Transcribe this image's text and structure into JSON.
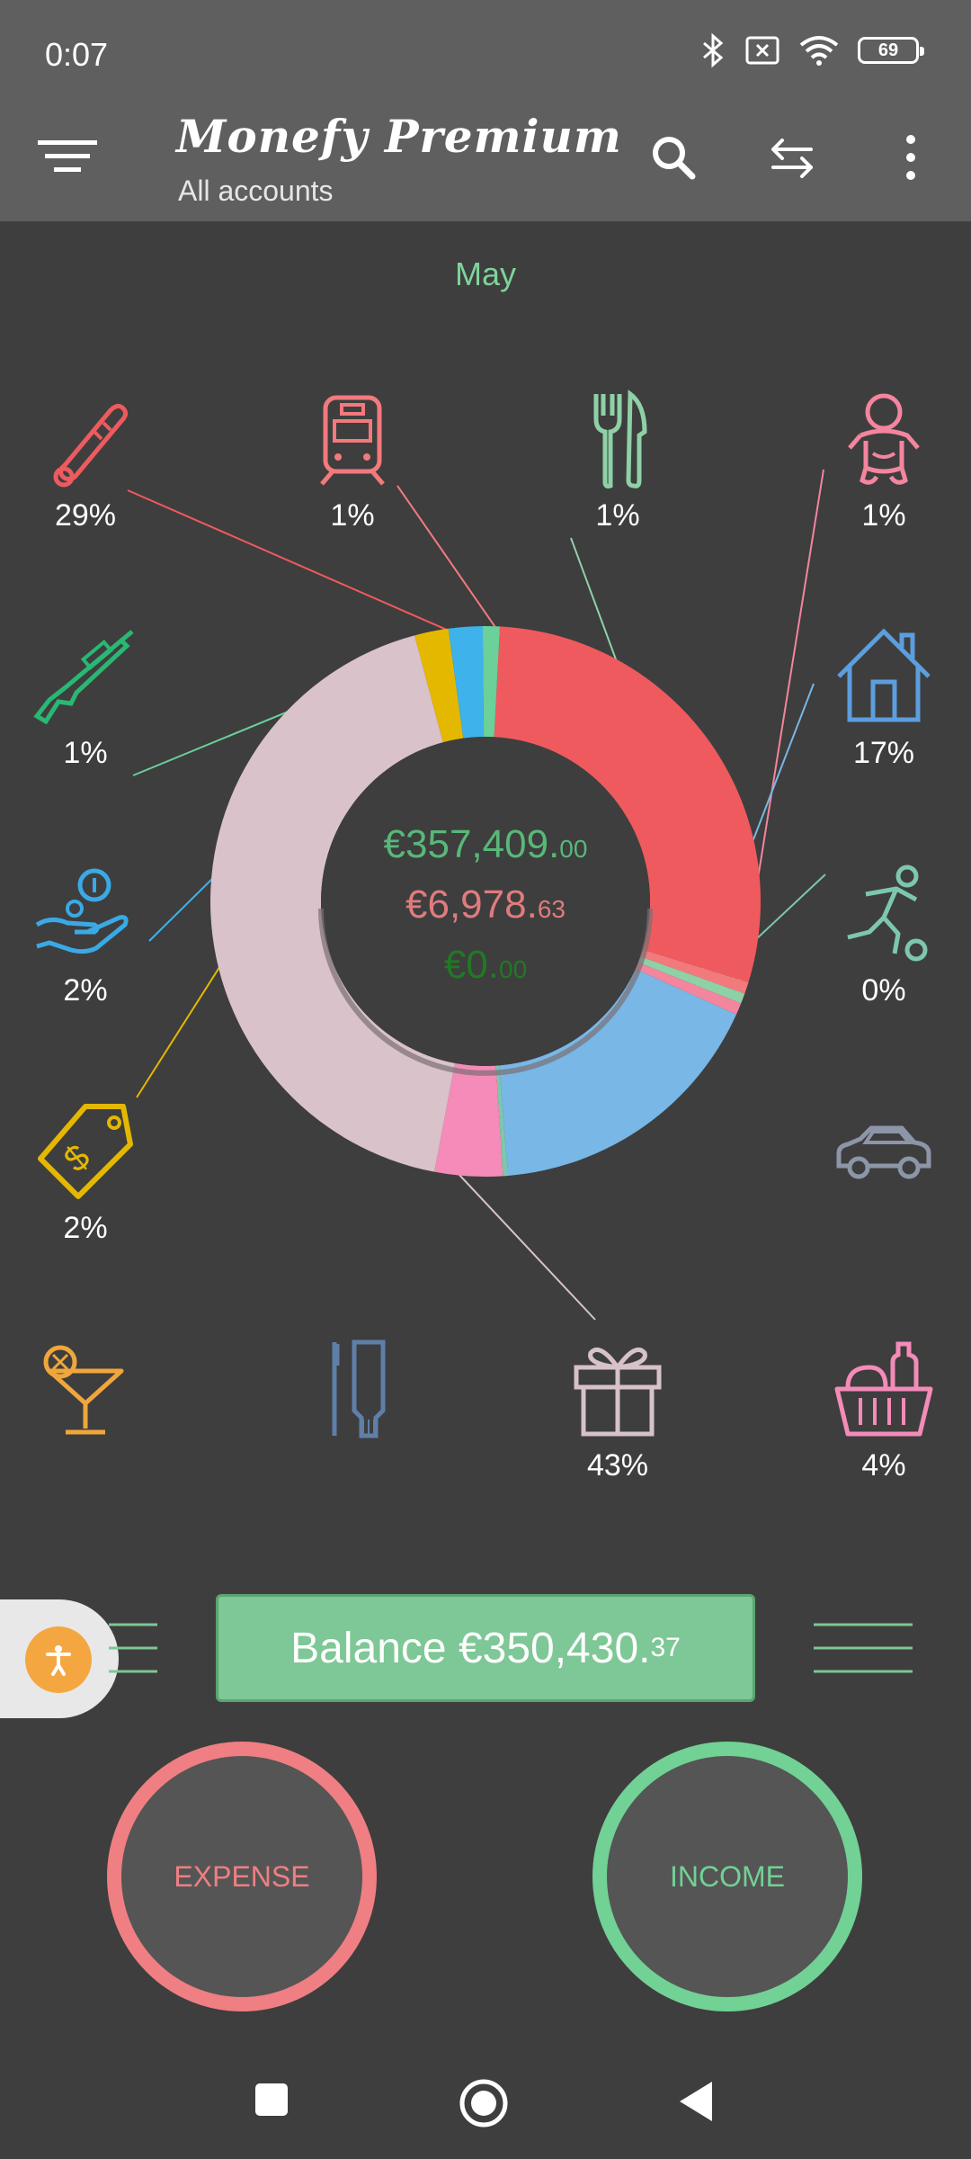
{
  "status": {
    "time": "0:07",
    "battery": "69"
  },
  "header": {
    "title": "Monefy Premium",
    "subtitle": "All accounts"
  },
  "month": "May",
  "categories": [
    {
      "name": "health",
      "icon": "thermometer-icon",
      "color": "#ef5a5e",
      "percent": "29%"
    },
    {
      "name": "transport",
      "icon": "train-icon",
      "color": "#f27a7d",
      "percent": "1%"
    },
    {
      "name": "eating-out",
      "icon": "fork-knife-icon",
      "color": "#8fd1a7",
      "percent": "1%"
    },
    {
      "name": "baby",
      "icon": "baby-icon",
      "color": "#f4859e",
      "percent": "1%"
    },
    {
      "name": "hunting",
      "icon": "rifle-icon",
      "color": "#29b873",
      "percent": "1%"
    },
    {
      "name": "house",
      "icon": "house-icon",
      "color": "#5c9edf",
      "percent": "17%"
    },
    {
      "name": "savings",
      "icon": "coin-hand-icon",
      "color": "#3aa9e6",
      "percent": "2%"
    },
    {
      "name": "sports",
      "icon": "soccer-player-icon",
      "color": "#7dc7ad",
      "percent": "0%"
    },
    {
      "name": "price-tag",
      "icon": "price-tag-icon",
      "color": "#e5b800",
      "percent": "2%"
    },
    {
      "name": "car",
      "icon": "car-icon",
      "color": "#8d95a8",
      "percent": ""
    },
    {
      "name": "entertainment",
      "icon": "cocktail-icon",
      "color": "#f0a63b",
      "percent": ""
    },
    {
      "name": "toiletry",
      "icon": "toothbrush-icon",
      "color": "#5f7fa8",
      "percent": ""
    },
    {
      "name": "gifts",
      "icon": "gift-icon",
      "color": "#d6c2c8",
      "percent": "43%"
    },
    {
      "name": "food",
      "icon": "grocery-basket-icon",
      "color": "#f48bb8",
      "percent": "4%"
    }
  ],
  "totals": {
    "income_main": "€357,409.",
    "income_cents": "00",
    "expense_main": "€6,978.",
    "expense_cents": "63",
    "balance_main": "€0.",
    "balance_cents": "00"
  },
  "balance": {
    "label": "Balance €350,430.",
    "cents": "37"
  },
  "buttons": {
    "expense": "EXPENSE",
    "income": "INCOME"
  },
  "colors": {
    "income": "#72d195",
    "expense": "#ef7f82",
    "background": "#3e3e3e",
    "bar": "#5f5f5f"
  },
  "chart_data": {
    "type": "pie",
    "title": "",
    "slices": [
      {
        "category": "health",
        "percent": 29,
        "color": "#ef5a5e"
      },
      {
        "category": "transport",
        "percent": 0.7,
        "color": "#f27a7d"
      },
      {
        "category": "eating-out",
        "percent": 0.6,
        "color": "#8fd1a7"
      },
      {
        "category": "baby",
        "percent": 0.7,
        "color": "#f4859e"
      },
      {
        "category": "house",
        "percent": 17,
        "color": "#78b7e6"
      },
      {
        "category": "sports",
        "percent": 0.3,
        "color": "#7dc7ad"
      },
      {
        "category": "food",
        "percent": 4,
        "color": "#f48bb8"
      },
      {
        "category": "gifts",
        "percent": 43,
        "color": "#d9c2c9"
      },
      {
        "category": "price-tag",
        "percent": 2,
        "color": "#e5b800"
      },
      {
        "category": "savings",
        "percent": 2,
        "color": "#3eb2ea"
      },
      {
        "category": "hunting",
        "percent": 1,
        "color": "#6bd09a"
      }
    ]
  }
}
